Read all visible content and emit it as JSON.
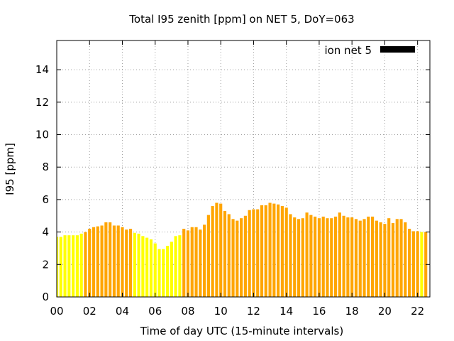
{
  "chart_data": {
    "type": "bar",
    "title": "Total I95 zenith [ppm] on NET 5, DoY=063",
    "xlabel": "Time of day UTC (15-minute intervals)",
    "ylabel": "I95 [ppm]",
    "xlim": [
      0,
      22.75
    ],
    "ylim": [
      0,
      15.8
    ],
    "xticks": [
      "00",
      "02",
      "04",
      "06",
      "08",
      "10",
      "12",
      "14",
      "16",
      "18",
      "20",
      "22"
    ],
    "yticks": [
      "0",
      "2",
      "4",
      "6",
      "8",
      "10",
      "12",
      "14"
    ],
    "grid": true,
    "legend": {
      "position": "top-right",
      "label": "ion net 5",
      "color": "#000000"
    },
    "colors": {
      "quiet": "#ffff00",
      "active": "#ffa500",
      "legend": "#000000"
    },
    "interval_hours": 0.25,
    "series": [
      {
        "values": [
          3.7,
          3.7,
          3.8,
          3.8,
          3.8,
          3.8,
          3.9,
          4.0,
          4.2,
          4.3,
          4.35,
          4.4,
          4.6,
          4.6,
          4.4,
          4.4,
          4.3,
          4.15,
          4.2,
          3.95,
          3.9,
          3.75,
          3.65,
          3.55,
          3.3,
          2.95,
          2.95,
          3.15,
          3.4,
          3.75,
          3.8,
          4.2,
          4.1,
          4.3,
          4.3,
          4.15,
          4.45,
          5.05,
          5.6,
          5.8,
          5.75,
          5.3,
          5.1,
          4.8,
          4.7,
          4.85,
          5.0,
          5.35,
          5.4,
          5.4,
          5.65,
          5.65,
          5.8,
          5.75,
          5.7,
          5.6,
          5.5,
          5.1,
          4.9,
          4.8,
          4.85,
          5.2,
          5.05,
          4.95,
          4.85,
          4.95,
          4.85,
          4.85,
          4.95,
          5.2,
          5.0,
          4.9,
          4.9,
          4.8,
          4.7,
          4.8,
          4.95,
          4.95,
          4.7,
          4.6,
          4.5,
          4.85,
          4.55,
          4.8,
          4.8,
          4.6,
          4.2,
          4.05,
          4.05,
          4.0,
          4.0
        ],
        "levels": [
          "quiet",
          "quiet",
          "quiet",
          "quiet",
          "quiet",
          "quiet",
          "quiet",
          "active",
          "active",
          "active",
          "active",
          "active",
          "active",
          "active",
          "active",
          "active",
          "active",
          "active",
          "active",
          "quiet",
          "quiet",
          "quiet",
          "quiet",
          "quiet",
          "quiet",
          "quiet",
          "quiet",
          "quiet",
          "quiet",
          "quiet",
          "quiet",
          "active",
          "active",
          "active",
          "active",
          "active",
          "active",
          "active",
          "active",
          "active",
          "active",
          "active",
          "active",
          "active",
          "active",
          "active",
          "active",
          "active",
          "active",
          "active",
          "active",
          "active",
          "active",
          "active",
          "active",
          "active",
          "active",
          "active",
          "active",
          "active",
          "active",
          "active",
          "active",
          "active",
          "active",
          "active",
          "active",
          "active",
          "active",
          "active",
          "active",
          "active",
          "active",
          "active",
          "active",
          "active",
          "active",
          "active",
          "active",
          "active",
          "active",
          "active",
          "active",
          "active",
          "active",
          "active",
          "active",
          "active",
          "active",
          "quiet",
          "active"
        ]
      }
    ]
  }
}
